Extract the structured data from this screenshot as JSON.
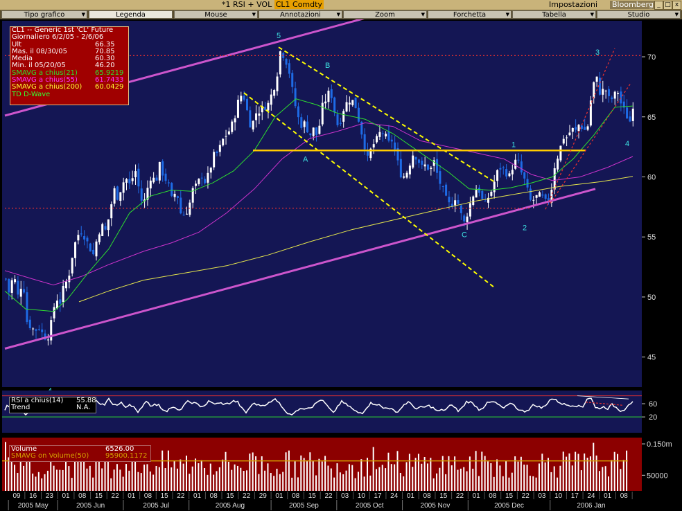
{
  "window": {
    "title": "*1 RSI + VOL",
    "ticker": "CL1 Comdty",
    "settings_label": "Impostazioni",
    "brand": "Bloomberg",
    "minimize": "_",
    "maximize": "□",
    "close": "x"
  },
  "menu": [
    {
      "label": "Tipo grafico",
      "arrow": "▼"
    },
    {
      "label": "Legenda",
      "arrow": ""
    },
    {
      "label": "Mouse",
      "arrow": "▼"
    },
    {
      "label": "Annotazioni",
      "arrow": "▼"
    },
    {
      "label": "Zoom",
      "arrow": "▼"
    },
    {
      "label": "Forchetta",
      "arrow": "▼"
    },
    {
      "label": "Tabella",
      "arrow": "▼"
    },
    {
      "label": "Studio",
      "arrow": "▼"
    }
  ],
  "legend": {
    "rows": [
      {
        "k": "CL1 -- Generic 1st 'CL' Future",
        "v": "",
        "color": "#ffffff"
      },
      {
        "k": "Giornaliero 6/2/05 - 2/6/06",
        "v": "",
        "color": "#ffffff"
      },
      {
        "k": "Ult",
        "v": "66.35",
        "color": "#ffffff"
      },
      {
        "k": "Mas. il  08/30/05",
        "v": "70.85",
        "color": "#ffffff"
      },
      {
        "k": "Media",
        "v": "60.30",
        "color": "#ffffff"
      },
      {
        "k": "Min. il  05/20/05",
        "v": "46.20",
        "color": "#ffffff"
      },
      {
        "k": "SMAVG a chius(21)",
        "v": "65.9219",
        "color": "#2ee02e"
      },
      {
        "k": "SMAVG a chius(55)",
        "v": "61.7433",
        "color": "#ff33ff"
      },
      {
        "k": "SMAVG a chius(200)",
        "v": "60.0429",
        "color": "#ffff33"
      },
      {
        "k": "TD D-Wave",
        "v": "",
        "color": "#33ff33"
      }
    ]
  },
  "rsi_legend": {
    "rows": [
      {
        "k": "RSI a chius(14)",
        "v": "55.88"
      },
      {
        "k": "Trend",
        "v": "N.A."
      }
    ]
  },
  "vol_legend": {
    "rows": [
      {
        "k": "Volume",
        "v": "6526.00",
        "color": "#ffffff"
      },
      {
        "k": "SMAVG on Volume(50)",
        "v": "95900.1172",
        "color": "#d4a000"
      }
    ]
  },
  "colors": {
    "chart_bg": "#141654",
    "up_candle": "#ffffff",
    "down_candle": "#1e6be6",
    "sma21": "#2ee02e",
    "sma55": "#cc33cc",
    "sma200": "#e6e64d",
    "channel": "#cc55cc",
    "wave_label": "#3ee0e0",
    "fork": "#ffff00",
    "resistance": "#ffcc00",
    "red_dotted": "#e03030",
    "vol_bg": "#8c0000",
    "axis_bg": "#000000"
  },
  "chart_data": {
    "type": "candlestick",
    "title": "CL1 -- Generic 1st 'CL' Future",
    "y_ticks": [
      45,
      50,
      55,
      60,
      65,
      70
    ],
    "ylim": [
      42.5,
      73
    ],
    "date_ticks": [
      "09",
      "16",
      "23",
      "01",
      "08",
      "15",
      "22",
      "01",
      "08",
      "15",
      "22",
      "01",
      "08",
      "15",
      "22",
      "29",
      "01",
      "08",
      "15",
      "22",
      "03",
      "10",
      "17",
      "24",
      "01",
      "08",
      "15",
      "22",
      "01",
      "08",
      "15",
      "22",
      "03",
      "10",
      "17",
      "24",
      "01",
      "08"
    ],
    "month_labels": [
      "2005 May",
      "2005 Jun",
      "2005 Jul",
      "2005 Aug",
      "2005 Sep",
      "2005 Oct",
      "2005 Nov",
      "2005 Dec",
      "2006 Jan"
    ],
    "price_path": [
      [
        0,
        51.5
      ],
      [
        6,
        50
      ],
      [
        10,
        52
      ],
      [
        15,
        51
      ],
      [
        19,
        49.5
      ],
      [
        24,
        52
      ],
      [
        30,
        48
      ],
      [
        36,
        47.5
      ],
      [
        42,
        47.2
      ],
      [
        48,
        47.5
      ],
      [
        54,
        46.8
      ],
      [
        60,
        46.5
      ],
      [
        66,
        48
      ],
      [
        72,
        50
      ],
      [
        78,
        49.5
      ],
      [
        84,
        51
      ],
      [
        90,
        51.5
      ],
      [
        96,
        53.5
      ],
      [
        102,
        55
      ],
      [
        108,
        55.5
      ],
      [
        114,
        55
      ],
      [
        120,
        54.2
      ],
      [
        126,
        53.5
      ],
      [
        132,
        55
      ],
      [
        138,
        56
      ],
      [
        144,
        55.5
      ],
      [
        150,
        57
      ],
      [
        156,
        59
      ],
      [
        162,
        58.2
      ],
      [
        168,
        59.5
      ],
      [
        174,
        59.8
      ],
      [
        180,
        59.2
      ],
      [
        186,
        60.8
      ],
      [
        192,
        59
      ],
      [
        198,
        57.5
      ],
      [
        204,
        59
      ],
      [
        210,
        60.2
      ],
      [
        216,
        59.5
      ],
      [
        222,
        61
      ],
      [
        228,
        60
      ],
      [
        234,
        59.5
      ],
      [
        240,
        58
      ],
      [
        246,
        59
      ],
      [
        252,
        57
      ],
      [
        258,
        56.8
      ],
      [
        264,
        57.5
      ],
      [
        270,
        59
      ],
      [
        276,
        59.3
      ],
      [
        282,
        60.2
      ],
      [
        288,
        59.5
      ],
      [
        294,
        60.5
      ],
      [
        300,
        61.8
      ],
      [
        306,
        62
      ],
      [
        312,
        63
      ],
      [
        318,
        63.5
      ],
      [
        324,
        64
      ],
      [
        330,
        65
      ],
      [
        336,
        66.5
      ],
      [
        342,
        67
      ],
      [
        348,
        65.5
      ],
      [
        354,
        64
      ],
      [
        360,
        65.3
      ],
      [
        366,
        65.5
      ],
      [
        372,
        65.8
      ],
      [
        378,
        66
      ],
      [
        384,
        67
      ],
      [
        390,
        68
      ],
      [
        396,
        70.5
      ],
      [
        402,
        70
      ],
      [
        408,
        69
      ],
      [
        414,
        67
      ],
      [
        420,
        65.2
      ],
      [
        426,
        64.3
      ],
      [
        432,
        64.5
      ],
      [
        438,
        63.4
      ],
      [
        444,
        64
      ],
      [
        450,
        63.3
      ],
      [
        456,
        65.8
      ],
      [
        462,
        66.5
      ],
      [
        468,
        67.3
      ],
      [
        474,
        65.5
      ],
      [
        480,
        64
      ],
      [
        486,
        65.5
      ],
      [
        492,
        66.2
      ],
      [
        498,
        66.5
      ],
      [
        504,
        66
      ],
      [
        510,
        64.5
      ],
      [
        516,
        63
      ],
      [
        522,
        61.5
      ],
      [
        528,
        62.5
      ],
      [
        534,
        63
      ],
      [
        540,
        63.7
      ],
      [
        546,
        63.6
      ],
      [
        552,
        62.8
      ],
      [
        558,
        63.1
      ],
      [
        564,
        61.5
      ],
      [
        570,
        60.2
      ],
      [
        576,
        60
      ],
      [
        582,
        61
      ],
      [
        588,
        62
      ],
      [
        594,
        61.5
      ],
      [
        600,
        60.8
      ],
      [
        606,
        61
      ],
      [
        612,
        60.5
      ],
      [
        618,
        61.3
      ],
      [
        624,
        59.8
      ],
      [
        630,
        59
      ],
      [
        636,
        58
      ],
      [
        642,
        57.5
      ],
      [
        648,
        58.3
      ],
      [
        654,
        57.6
      ],
      [
        660,
        56
      ],
      [
        666,
        57
      ],
      [
        672,
        58.2
      ],
      [
        678,
        59
      ],
      [
        684,
        58.8
      ],
      [
        690,
        57.5
      ],
      [
        696,
        58.3
      ],
      [
        702,
        59
      ],
      [
        708,
        60.3
      ],
      [
        714,
        60.8
      ],
      [
        720,
        60.5
      ],
      [
        726,
        60
      ],
      [
        732,
        61
      ],
      [
        738,
        61.5
      ],
      [
        744,
        60.3
      ],
      [
        750,
        59.5
      ],
      [
        756,
        58
      ],
      [
        762,
        58.1
      ],
      [
        768,
        58.5
      ],
      [
        774,
        58.3
      ],
      [
        780,
        57.8
      ],
      [
        786,
        58.5
      ],
      [
        792,
        61
      ],
      [
        798,
        62
      ],
      [
        804,
        63.3
      ],
      [
        810,
        63.3
      ],
      [
        816,
        64
      ],
      [
        822,
        63.8
      ],
      [
        828,
        64.5
      ],
      [
        834,
        63.8
      ],
      [
        840,
        64.3
      ],
      [
        846,
        67.5
      ],
      [
        852,
        68.3
      ],
      [
        858,
        66.8
      ],
      [
        864,
        67.5
      ],
      [
        870,
        66.5
      ],
      [
        876,
        66.5
      ],
      [
        882,
        67.3
      ],
      [
        888,
        66
      ],
      [
        894,
        65.3
      ],
      [
        900,
        64.5
      ],
      [
        906,
        66.35
      ]
    ],
    "sma21": [
      [
        0,
        50.5
      ],
      [
        30,
        49
      ],
      [
        70,
        48.8
      ],
      [
        90,
        49.8
      ],
      [
        120,
        52
      ],
      [
        150,
        54
      ],
      [
        180,
        57
      ],
      [
        210,
        58.4
      ],
      [
        240,
        58.9
      ],
      [
        270,
        58.8
      ],
      [
        300,
        59.5
      ],
      [
        330,
        60.5
      ],
      [
        360,
        62.2
      ],
      [
        390,
        65
      ],
      [
        420,
        66.5
      ],
      [
        450,
        66
      ],
      [
        480,
        65.3
      ],
      [
        520,
        64.8
      ],
      [
        560,
        63.6
      ],
      [
        600,
        62
      ],
      [
        640,
        60.4
      ],
      [
        670,
        59
      ],
      [
        700,
        58.9
      ],
      [
        730,
        59.1
      ],
      [
        760,
        59.5
      ],
      [
        790,
        60
      ],
      [
        820,
        61.5
      ],
      [
        850,
        63.5
      ],
      [
        880,
        65.8
      ],
      [
        906,
        65.9
      ]
    ],
    "sma55": [
      [
        0,
        52.2
      ],
      [
        40,
        51.5
      ],
      [
        70,
        51
      ],
      [
        110,
        51.7
      ],
      [
        150,
        52.7
      ],
      [
        200,
        53.8
      ],
      [
        240,
        54.5
      ],
      [
        280,
        55.4
      ],
      [
        320,
        57
      ],
      [
        360,
        59
      ],
      [
        400,
        61.5
      ],
      [
        440,
        63.2
      ],
      [
        480,
        63.8
      ],
      [
        520,
        64.5
      ],
      [
        560,
        64.2
      ],
      [
        600,
        63
      ],
      [
        640,
        62.5
      ],
      [
        680,
        62
      ],
      [
        720,
        61.5
      ],
      [
        760,
        60.2
      ],
      [
        790,
        59.7
      ],
      [
        830,
        60
      ],
      [
        870,
        60.8
      ],
      [
        906,
        61.7
      ]
    ],
    "sma200": [
      [
        107,
        49.6
      ],
      [
        150,
        50.5
      ],
      [
        200,
        51.4
      ],
      [
        260,
        52
      ],
      [
        320,
        52.6
      ],
      [
        380,
        53.5
      ],
      [
        440,
        54.6
      ],
      [
        500,
        55.6
      ],
      [
        560,
        56.4
      ],
      [
        620,
        57.2
      ],
      [
        680,
        58
      ],
      [
        740,
        58.6
      ],
      [
        800,
        59.2
      ],
      [
        860,
        59.6
      ],
      [
        906,
        60.04
      ]
    ],
    "channel_lower": [
      [
        0,
        45.7
      ],
      [
        852,
        59
      ]
    ],
    "channel_upper": [
      [
        0,
        65.1
      ],
      [
        557,
        73.8
      ]
    ],
    "fork_lines": [
      [
        [
          345,
          67
        ],
        [
          706,
          50.8
        ]
      ],
      [
        [
          395,
          70.8
        ],
        [
          706,
          59.6
        ]
      ]
    ],
    "resistance": [
      [
        358,
        62.2
      ],
      [
        838,
        62.2
      ]
    ],
    "red_dotted_h": [
      [
        [
          0,
          57.4
        ],
        [
          760,
          57.4
        ]
      ],
      [
        [
          0,
          70.1
        ],
        [
          920,
          70.1
        ]
      ]
    ],
    "red_up_lines": [
      [
        [
          780,
          57.3
        ],
        [
          880,
          70.7
        ]
      ],
      [
        [
          787,
          57.8
        ],
        [
          903,
          67.8
        ]
      ]
    ],
    "wave_labels": [
      {
        "text": "4",
        "x": 66,
        "y": 42.2
      },
      {
        "text": "5",
        "x": 396,
        "y": 71.8
      },
      {
        "text": "A",
        "x": 434,
        "y": 61.5
      },
      {
        "text": "B",
        "x": 466,
        "y": 69.3
      },
      {
        "text": "C",
        "x": 663,
        "y": 55.2
      },
      {
        "text": "1",
        "x": 735,
        "y": 62.7
      },
      {
        "text": "2",
        "x": 751,
        "y": 55.8
      },
      {
        "text": "3",
        "x": 856,
        "y": 70.4
      },
      {
        "text": "4",
        "x": 899,
        "y": 62.8
      }
    ],
    "rsi_ticks": [
      60,
      20
    ],
    "vol_ticks": [
      "0.150m",
      "50000"
    ],
    "vol_ymax": 170000,
    "vol_sma": 95900
  }
}
